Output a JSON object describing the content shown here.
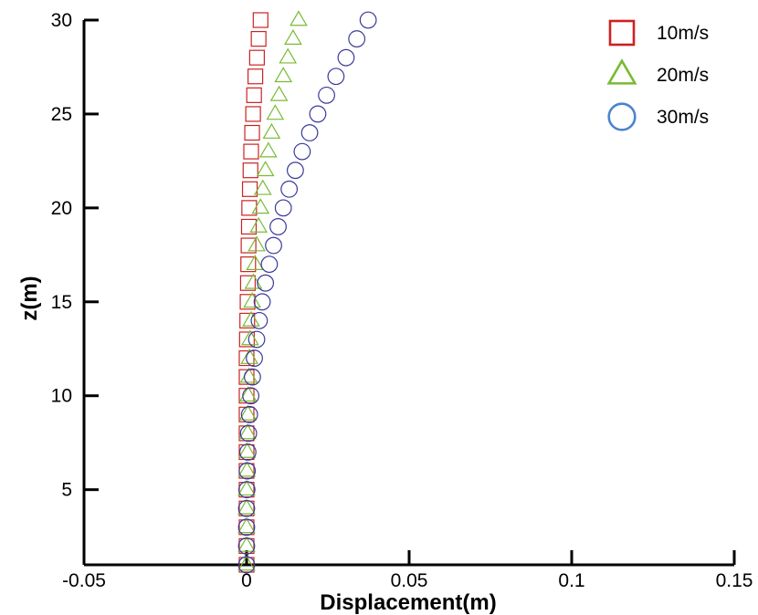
{
  "chart_data": {
    "type": "scatter",
    "title": "",
    "xlabel": "Displacement(m)",
    "ylabel": "z(m)",
    "xlim": [
      -0.05,
      0.15
    ],
    "ylim": [
      1,
      30
    ],
    "xticks": [
      -0.05,
      0,
      0.05,
      0.1,
      0.15
    ],
    "xtick_labels": [
      "-0.05",
      "0",
      "0.05",
      "0.1",
      "0.15"
    ],
    "yticks": [
      5,
      10,
      15,
      20,
      25,
      30
    ],
    "ytick_labels": [
      "5",
      "10",
      "15",
      "20",
      "25",
      "30"
    ],
    "grid": false,
    "legend_position": "top-right",
    "series": [
      {
        "name": "10m/s",
        "marker": "square",
        "color": "#cc2222",
        "y": [
          1,
          2,
          3,
          4,
          5,
          6,
          7,
          8,
          9,
          10,
          11,
          12,
          13,
          14,
          15,
          16,
          17,
          18,
          19,
          20,
          21,
          22,
          23,
          24,
          25,
          26,
          27,
          28,
          29,
          30
        ],
        "x": [
          0,
          0,
          0,
          0,
          0,
          0,
          0,
          0,
          0,
          0,
          0,
          0,
          0.0001,
          0.0002,
          0.0003,
          0.0004,
          0.0005,
          0.0006,
          0.0007,
          0.0008,
          0.001,
          0.0012,
          0.0014,
          0.0017,
          0.002,
          0.0023,
          0.0027,
          0.0032,
          0.0037,
          0.0043
        ]
      },
      {
        "name": "20m/s",
        "marker": "triangle",
        "color": "#77bb33",
        "y": [
          1,
          2,
          3,
          4,
          5,
          6,
          7,
          8,
          9,
          10,
          11,
          12,
          13,
          14,
          15,
          16,
          17,
          18,
          19,
          20,
          21,
          22,
          23,
          24,
          25,
          26,
          27,
          28,
          29,
          30
        ],
        "x": [
          0,
          0,
          0,
          0,
          0,
          0.0001,
          0.0002,
          0.0003,
          0.0004,
          0.0005,
          0.0007,
          0.0009,
          0.0011,
          0.0014,
          0.0017,
          0.0021,
          0.0026,
          0.0031,
          0.0037,
          0.0043,
          0.005,
          0.0058,
          0.0067,
          0.0077,
          0.0088,
          0.01,
          0.0113,
          0.0127,
          0.0143,
          0.016
        ]
      },
      {
        "name": "30m/s",
        "marker": "circle",
        "color": "#3a3a99",
        "legend_color": "#4a84cc",
        "y": [
          1,
          2,
          3,
          4,
          5,
          6,
          7,
          8,
          9,
          10,
          11,
          12,
          13,
          14,
          15,
          16,
          17,
          18,
          19,
          20,
          21,
          22,
          23,
          24,
          25,
          26,
          27,
          28,
          29,
          30
        ],
        "x": [
          0,
          0,
          0,
          0,
          0.0001,
          0.0002,
          0.0004,
          0.0006,
          0.0009,
          0.0013,
          0.0018,
          0.0024,
          0.0031,
          0.0039,
          0.0048,
          0.0058,
          0.007,
          0.0083,
          0.0097,
          0.0113,
          0.0131,
          0.015,
          0.0171,
          0.0194,
          0.0219,
          0.0246,
          0.0275,
          0.0306,
          0.0339,
          0.0374
        ]
      }
    ]
  }
}
